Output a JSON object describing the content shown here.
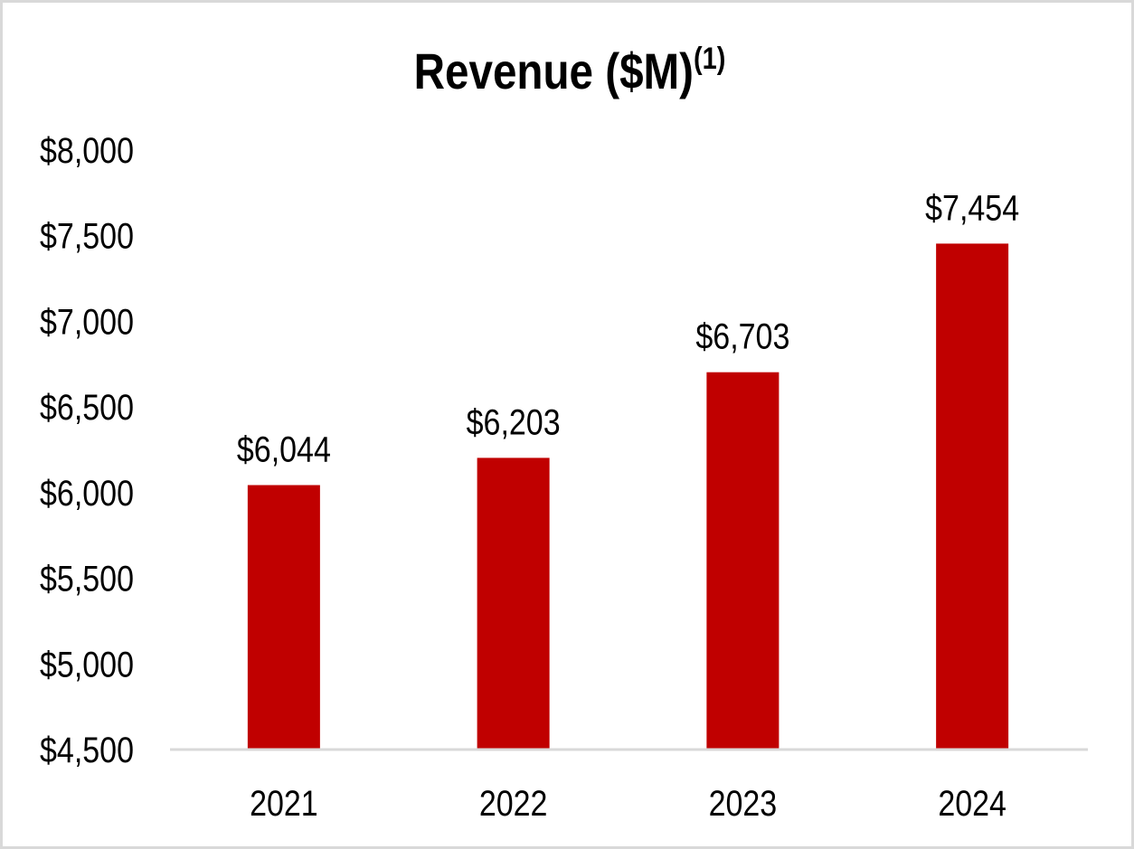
{
  "chart_data": {
    "type": "bar",
    "title": "Revenue ($M)",
    "title_superscript": "(1)",
    "categories": [
      "2021",
      "2022",
      "2023",
      "2024"
    ],
    "values": [
      6044,
      6203,
      6703,
      7454
    ],
    "data_labels": [
      "$6,044",
      "$6,203",
      "$6,703",
      "$7,454"
    ],
    "xlabel": "",
    "ylabel": "",
    "ylim": [
      4500,
      8000
    ],
    "yticks": [
      4500,
      5000,
      5500,
      6000,
      6500,
      7000,
      7500,
      8000
    ],
    "ytick_labels": [
      "$4,500",
      "$5,000",
      "$5,500",
      "$6,000",
      "$6,500",
      "$7,000",
      "$7,500",
      "$8,000"
    ],
    "grid": false,
    "legend": "none",
    "bar_color": "#c00000",
    "axis_color": "#d9d9d9"
  }
}
